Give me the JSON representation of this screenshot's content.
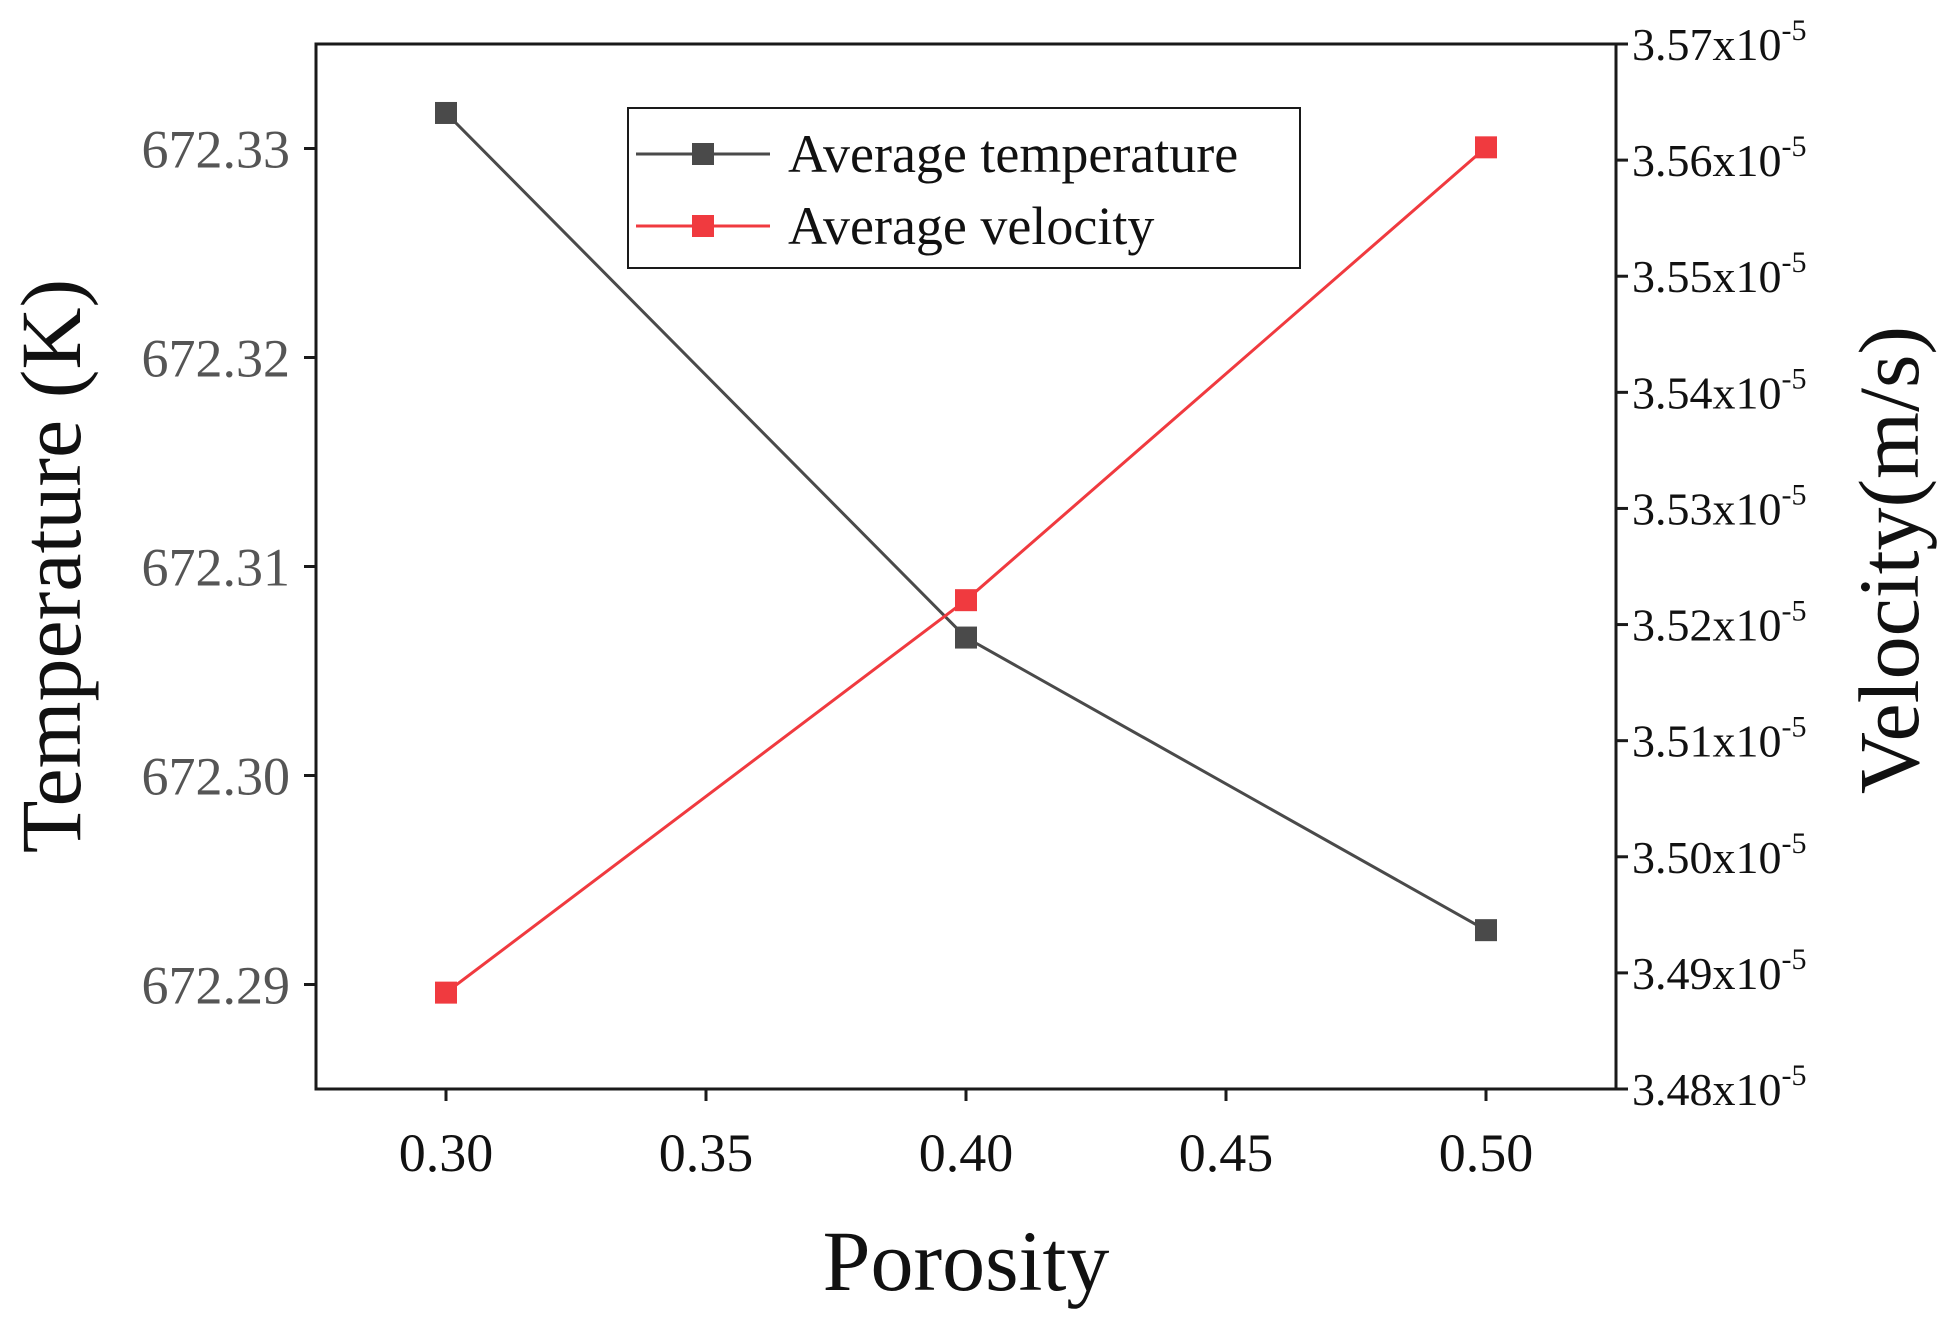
{
  "chart_data": {
    "type": "line",
    "title": "",
    "xlabel": "Porosity",
    "ylabel_left": "Temperature (K)",
    "ylabel_right": "Velocity(m/s)",
    "x": [
      0.3,
      0.4,
      0.5
    ],
    "x_ticks": [
      "0.30",
      "0.35",
      "0.40",
      "0.45",
      "0.50"
    ],
    "x_tick_values": [
      0.3,
      0.35,
      0.4,
      0.45,
      0.5
    ],
    "xlim": [
      0.275,
      0.525
    ],
    "y_left_ticks": [
      "672.29",
      "672.30",
      "672.31",
      "672.32",
      "672.33"
    ],
    "y_left_tick_values": [
      672.29,
      672.3,
      672.31,
      672.32,
      672.33
    ],
    "ylim_left": [
      672.285,
      672.335
    ],
    "y_right_ticks": [
      {
        "mantissa": "3.48x10",
        "exp": "-5",
        "value": 3.48
      },
      {
        "mantissa": "3.49x10",
        "exp": "-5",
        "value": 3.49
      },
      {
        "mantissa": "3.50x10",
        "exp": "-5",
        "value": 3.5
      },
      {
        "mantissa": "3.51x10",
        "exp": "-5",
        "value": 3.51
      },
      {
        "mantissa": "3.52x10",
        "exp": "-5",
        "value": 3.52
      },
      {
        "mantissa": "3.53x10",
        "exp": "-5",
        "value": 3.53
      },
      {
        "mantissa": "3.54x10",
        "exp": "-5",
        "value": 3.54
      },
      {
        "mantissa": "3.55x10",
        "exp": "-5",
        "value": 3.55
      },
      {
        "mantissa": "3.56x10",
        "exp": "-5",
        "value": 3.56
      },
      {
        "mantissa": "3.57x10",
        "exp": "-5",
        "value": 3.57
      }
    ],
    "ylim_right": [
      3.48,
      3.57
    ],
    "right_axis_scale_note": "values in units of 1e-5 m/s",
    "series": [
      {
        "name": "Average temperature",
        "axis": "left",
        "color": "#4a4a4a",
        "values": [
          672.3317,
          672.3066,
          672.2926
        ]
      },
      {
        "name": "Average velocity",
        "axis": "right",
        "color": "#f03a3f",
        "values": [
          3.4883,
          3.5221,
          3.5611
        ]
      }
    ],
    "legend": {
      "position": "top-center",
      "entries": [
        "Average temperature",
        "Average velocity"
      ]
    },
    "grid": false
  }
}
